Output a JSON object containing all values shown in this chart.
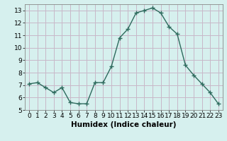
{
  "x": [
    0,
    1,
    2,
    3,
    4,
    5,
    6,
    7,
    8,
    9,
    10,
    11,
    12,
    13,
    14,
    15,
    16,
    17,
    18,
    19,
    20,
    21,
    22,
    23
  ],
  "y": [
    7.1,
    7.2,
    6.8,
    6.4,
    6.8,
    5.6,
    5.5,
    5.5,
    7.2,
    7.2,
    8.5,
    10.8,
    11.5,
    12.8,
    13.0,
    13.2,
    12.8,
    11.7,
    11.1,
    8.6,
    7.8,
    7.1,
    6.4,
    5.5
  ],
  "line_color": "#2e6b5e",
  "marker": "+",
  "markersize": 4,
  "linewidth": 1.0,
  "bg_color": "#d6f0ee",
  "grid_color": "#c8b8c8",
  "xlabel": "Humidex (Indice chaleur)",
  "xlim": [
    -0.5,
    23.5
  ],
  "ylim": [
    5,
    13.5
  ],
  "yticks": [
    5,
    6,
    7,
    8,
    9,
    10,
    11,
    12,
    13
  ],
  "xticks": [
    0,
    1,
    2,
    3,
    4,
    5,
    6,
    7,
    8,
    9,
    10,
    11,
    12,
    13,
    14,
    15,
    16,
    17,
    18,
    19,
    20,
    21,
    22,
    23
  ],
  "tick_labelsize": 6.5,
  "xlabel_fontsize": 7.5,
  "xlabel_fontweight": "bold"
}
